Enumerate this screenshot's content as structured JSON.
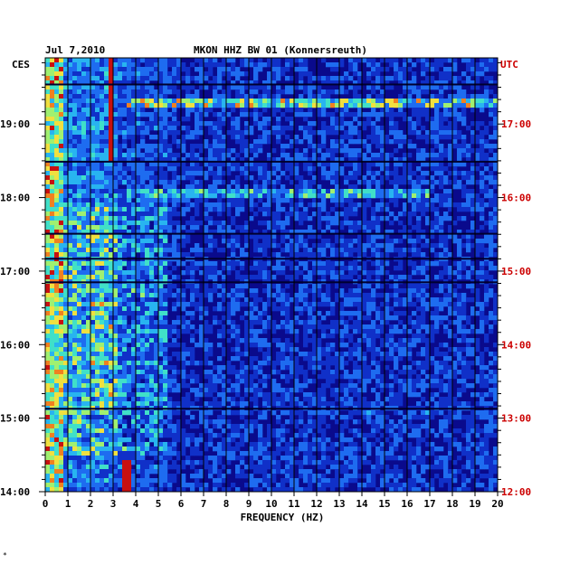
{
  "chart_data": {
    "type": "heatmap",
    "date": "Jul 7,2010",
    "title": "MKON HHZ BW 01 (Konnersreuth)",
    "left_axis_label": "CES",
    "right_axis_label": "UTC",
    "xlabel": "FREQUENCY (HZ)",
    "x_ticks": [
      0,
      1,
      2,
      3,
      4,
      5,
      6,
      7,
      8,
      9,
      10,
      11,
      12,
      13,
      14,
      15,
      16,
      17,
      18,
      19,
      20
    ],
    "xlim": [
      0,
      20
    ],
    "left_ticks": [
      "19:00",
      "18:00",
      "17:00",
      "16:00",
      "15:00",
      "14:00"
    ],
    "right_ticks": [
      "17:00",
      "16:00",
      "15:00",
      "14:00",
      "13:00",
      "12:00"
    ],
    "ylim_hours_local": [
      14.0,
      19.9
    ],
    "colors": {
      "background": "#0a0a8c",
      "grid": "#000000",
      "left_text": "#000000",
      "right_text": "#cc0000"
    },
    "corner_mark": "*"
  }
}
